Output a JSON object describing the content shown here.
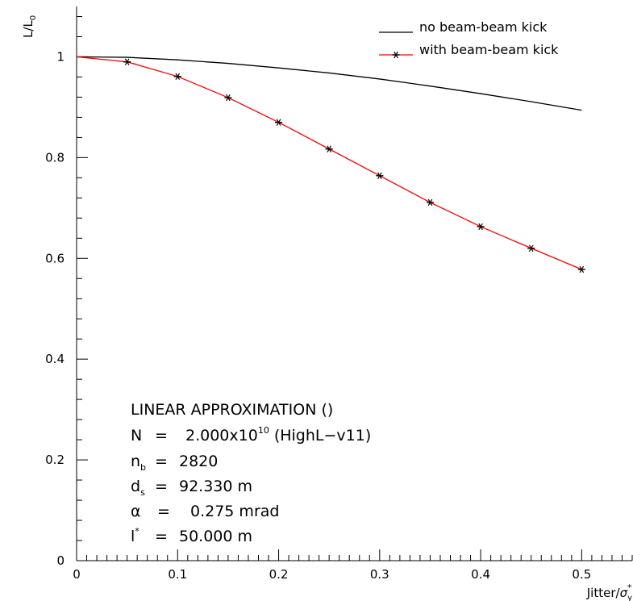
{
  "chart_data": {
    "type": "line",
    "x_axis": {
      "ticks": [
        0,
        0.1,
        0.2,
        0.3,
        0.4,
        0.5
      ],
      "tick_labels": [
        "0",
        "0.1",
        "0.2",
        "0.3",
        "0.4",
        "0.5"
      ],
      "range": [
        0,
        0.55
      ],
      "label_main": "Jitter/",
      "label_sigma": "σ",
      "label_sub": "y",
      "label_sup": "*"
    },
    "y_axis": {
      "ticks": [
        0,
        0.2,
        0.4,
        0.6,
        0.8,
        1
      ],
      "tick_labels": [
        "0",
        "0.2",
        "0.4",
        "0.6",
        "0.8",
        "1"
      ],
      "range": [
        0,
        1.1
      ],
      "label_main": "L/L",
      "label_sub": "0"
    },
    "series": [
      {
        "name": "no beam-beam kick",
        "color": "#000000",
        "marker": "none",
        "x": [
          0,
          0.05,
          0.1,
          0.15,
          0.2,
          0.25,
          0.3,
          0.35,
          0.4,
          0.45,
          0.5
        ],
        "values": [
          1.0,
          0.999,
          0.994,
          0.987,
          0.978,
          0.968,
          0.956,
          0.942,
          0.927,
          0.911,
          0.894
        ]
      },
      {
        "name": "with beam-beam kick",
        "color": "#ff0000",
        "marker": "asterisk",
        "x": [
          0,
          0.05,
          0.1,
          0.15,
          0.2,
          0.25,
          0.3,
          0.35,
          0.4,
          0.45,
          0.5
        ],
        "values": [
          1.0,
          0.99,
          0.961,
          0.919,
          0.87,
          0.817,
          0.764,
          0.711,
          0.663,
          0.62,
          0.578
        ]
      }
    ],
    "legend": {
      "placement": "top-right"
    },
    "grid": false,
    "annotations": {
      "title_line": "LINEAR APPROXIMATION ()",
      "n_label": "N",
      "n_eq": "=",
      "n_value": "2.000x10",
      "n_exp": "10",
      "n_suffix": "(HighL−v11)",
      "nb_label": "n",
      "nb_sub": "b",
      "nb_eq": "=",
      "nb_value": "2820",
      "ds_label": "d",
      "ds_sub": "s",
      "ds_eq": "=",
      "ds_value": "92.330 m",
      "alpha_label": "α",
      "alpha_eq": "=",
      "alpha_value": "0.275 mrad",
      "lstar_label": "l",
      "lstar_sup": "*",
      "lstar_eq": "=",
      "lstar_value": "50.000 m"
    }
  }
}
